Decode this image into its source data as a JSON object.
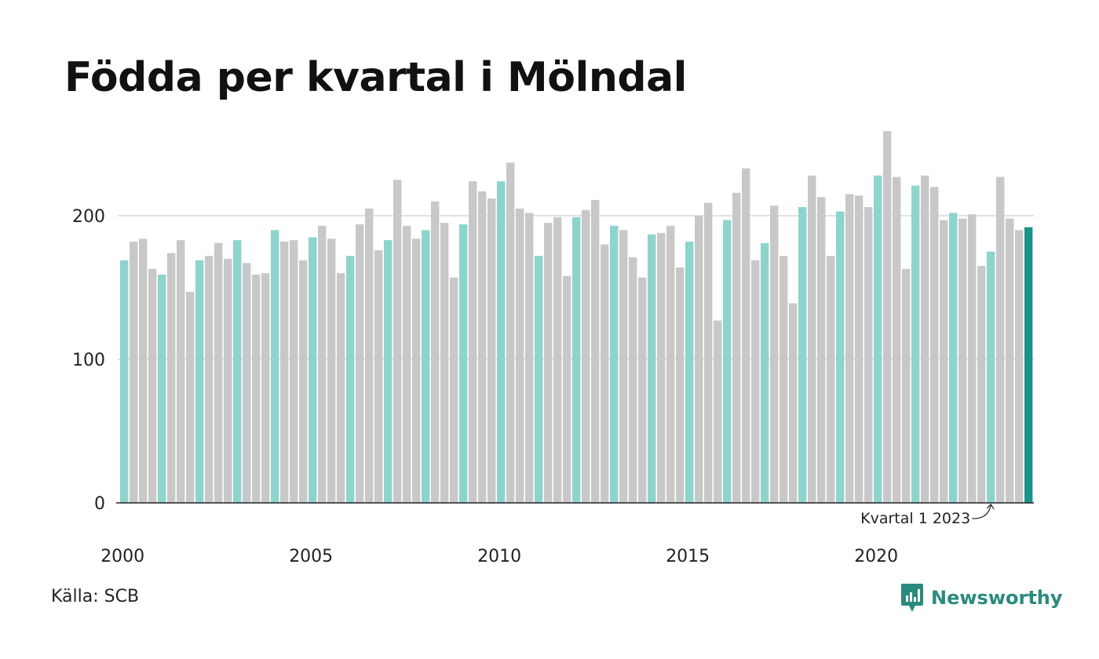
{
  "title": "Födda per kvartal i Mölndal",
  "source": "Källa: SCB",
  "brand": {
    "name": "Newsworthy",
    "logo_icon": "newsworthy-logo-icon"
  },
  "colors": {
    "q1": "#8dd4cc",
    "other": "#c8c8c8",
    "latest": "#1a9488",
    "gridline": "#e2e2e2",
    "axis": "#222222",
    "brand": "#2a8a80"
  },
  "chart_data": {
    "type": "bar",
    "title": "Födda per kvartal i Mölndal",
    "xlabel": "",
    "ylabel": "",
    "ylim": [
      0,
      260
    ],
    "y_ticks": [
      0,
      100,
      200
    ],
    "x_tick_labels": [
      "2000",
      "2005",
      "2010",
      "2015",
      "2020"
    ],
    "grid": true,
    "legend": "none",
    "start_year": 2000,
    "start_quarter": 1,
    "values": [
      169,
      182,
      184,
      163,
      159,
      174,
      183,
      147,
      169,
      172,
      181,
      170,
      183,
      167,
      159,
      160,
      190,
      182,
      183,
      169,
      185,
      193,
      184,
      160,
      172,
      194,
      205,
      176,
      183,
      225,
      193,
      184,
      190,
      210,
      195,
      157,
      194,
      224,
      217,
      212,
      224,
      237,
      205,
      202,
      172,
      195,
      199,
      158,
      199,
      204,
      211,
      180,
      193,
      190,
      171,
      157,
      187,
      188,
      193,
      164,
      182,
      200,
      209,
      127,
      197,
      216,
      233,
      169,
      181,
      207,
      172,
      139,
      206,
      228,
      213,
      172,
      203,
      215,
      214,
      206,
      228,
      259,
      227,
      163,
      221,
      228,
      220,
      197,
      202,
      198,
      201,
      165,
      175,
      227,
      198,
      190,
      192
    ],
    "annotation": {
      "text": "Kvartal 1 2023",
      "target_index": 92
    }
  }
}
